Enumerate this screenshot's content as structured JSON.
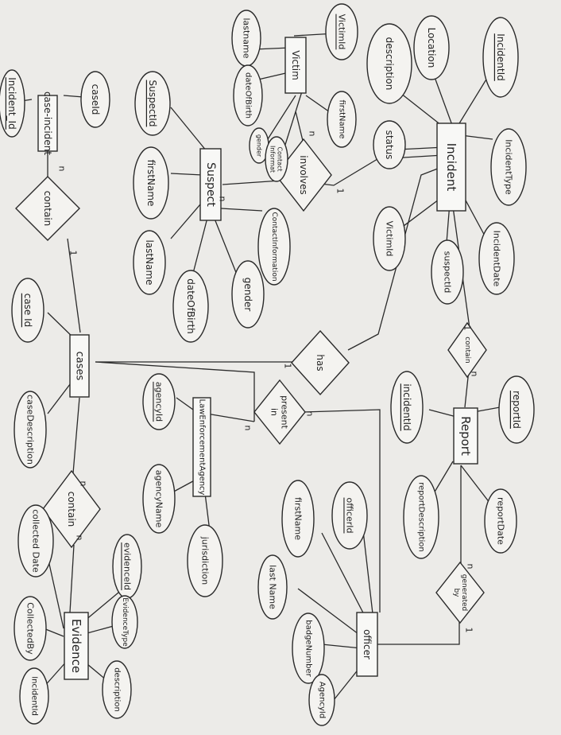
{
  "entities": {
    "incident": "Incident",
    "victim": "Victim",
    "suspect": "Suspect",
    "case_incident": "case-incident",
    "cases": "cases",
    "report": "Report",
    "law_agency": "LawEnforcementAgency",
    "officer": "officer",
    "evidence": "Evidence"
  },
  "relationships": {
    "involves": "involves",
    "contain_top": "contain",
    "has": "has",
    "contain_report": "contain",
    "present_in": [
      "present",
      "in"
    ],
    "generated_by": [
      "generated",
      "by"
    ],
    "contain_evidence": "contain"
  },
  "attributes": {
    "incident_id": "IncidentId",
    "location": "Location",
    "description": "description",
    "status": "status",
    "incident_type": "IncidentType",
    "incident_date": "IncidentDate",
    "victim_id_inc": "VictimId",
    "suspect_id_inc": "suspectId",
    "victim_id": "VictimId",
    "v_lastname": "lastname",
    "v_dob": "dateOfBirth",
    "v_gender": "gender",
    "v_contact": [
      "Contact",
      "Informat"
    ],
    "v_firstname": "firstName",
    "suspect_id": "SuspectId",
    "s_firstname": "firstName",
    "s_lastname": "lastName",
    "s_dob": "dateOfBirth",
    "s_gender": "gender",
    "s_contact": "ContactInformation",
    "case_id_ci": "caseId",
    "incident_id_ci": "Incident_Id",
    "case_id": "case Id",
    "case_description": "caseDescription",
    "report_id": "reportId",
    "r_incident_id": "incidentId",
    "report_description": "reportDescription",
    "report_date": "reportDate",
    "agency_id": "agencyId",
    "agency_name": "agencyName",
    "jurisdiction": "jurisdiction",
    "officer_id": "officerId",
    "o_firstname": "firstName",
    "o_lastname": "last Name",
    "badge_number": "badgeNumber",
    "o_agency_id": "AgencyId",
    "evidence_id": "evidenceId",
    "evidence_type": "EvidenceType",
    "e_description": "description",
    "collected_date": "collected Date",
    "collected_by": "CollectedBy",
    "e_incident_id": "IncidentId"
  },
  "cardinalities": {
    "n": "n",
    "one": "1"
  }
}
